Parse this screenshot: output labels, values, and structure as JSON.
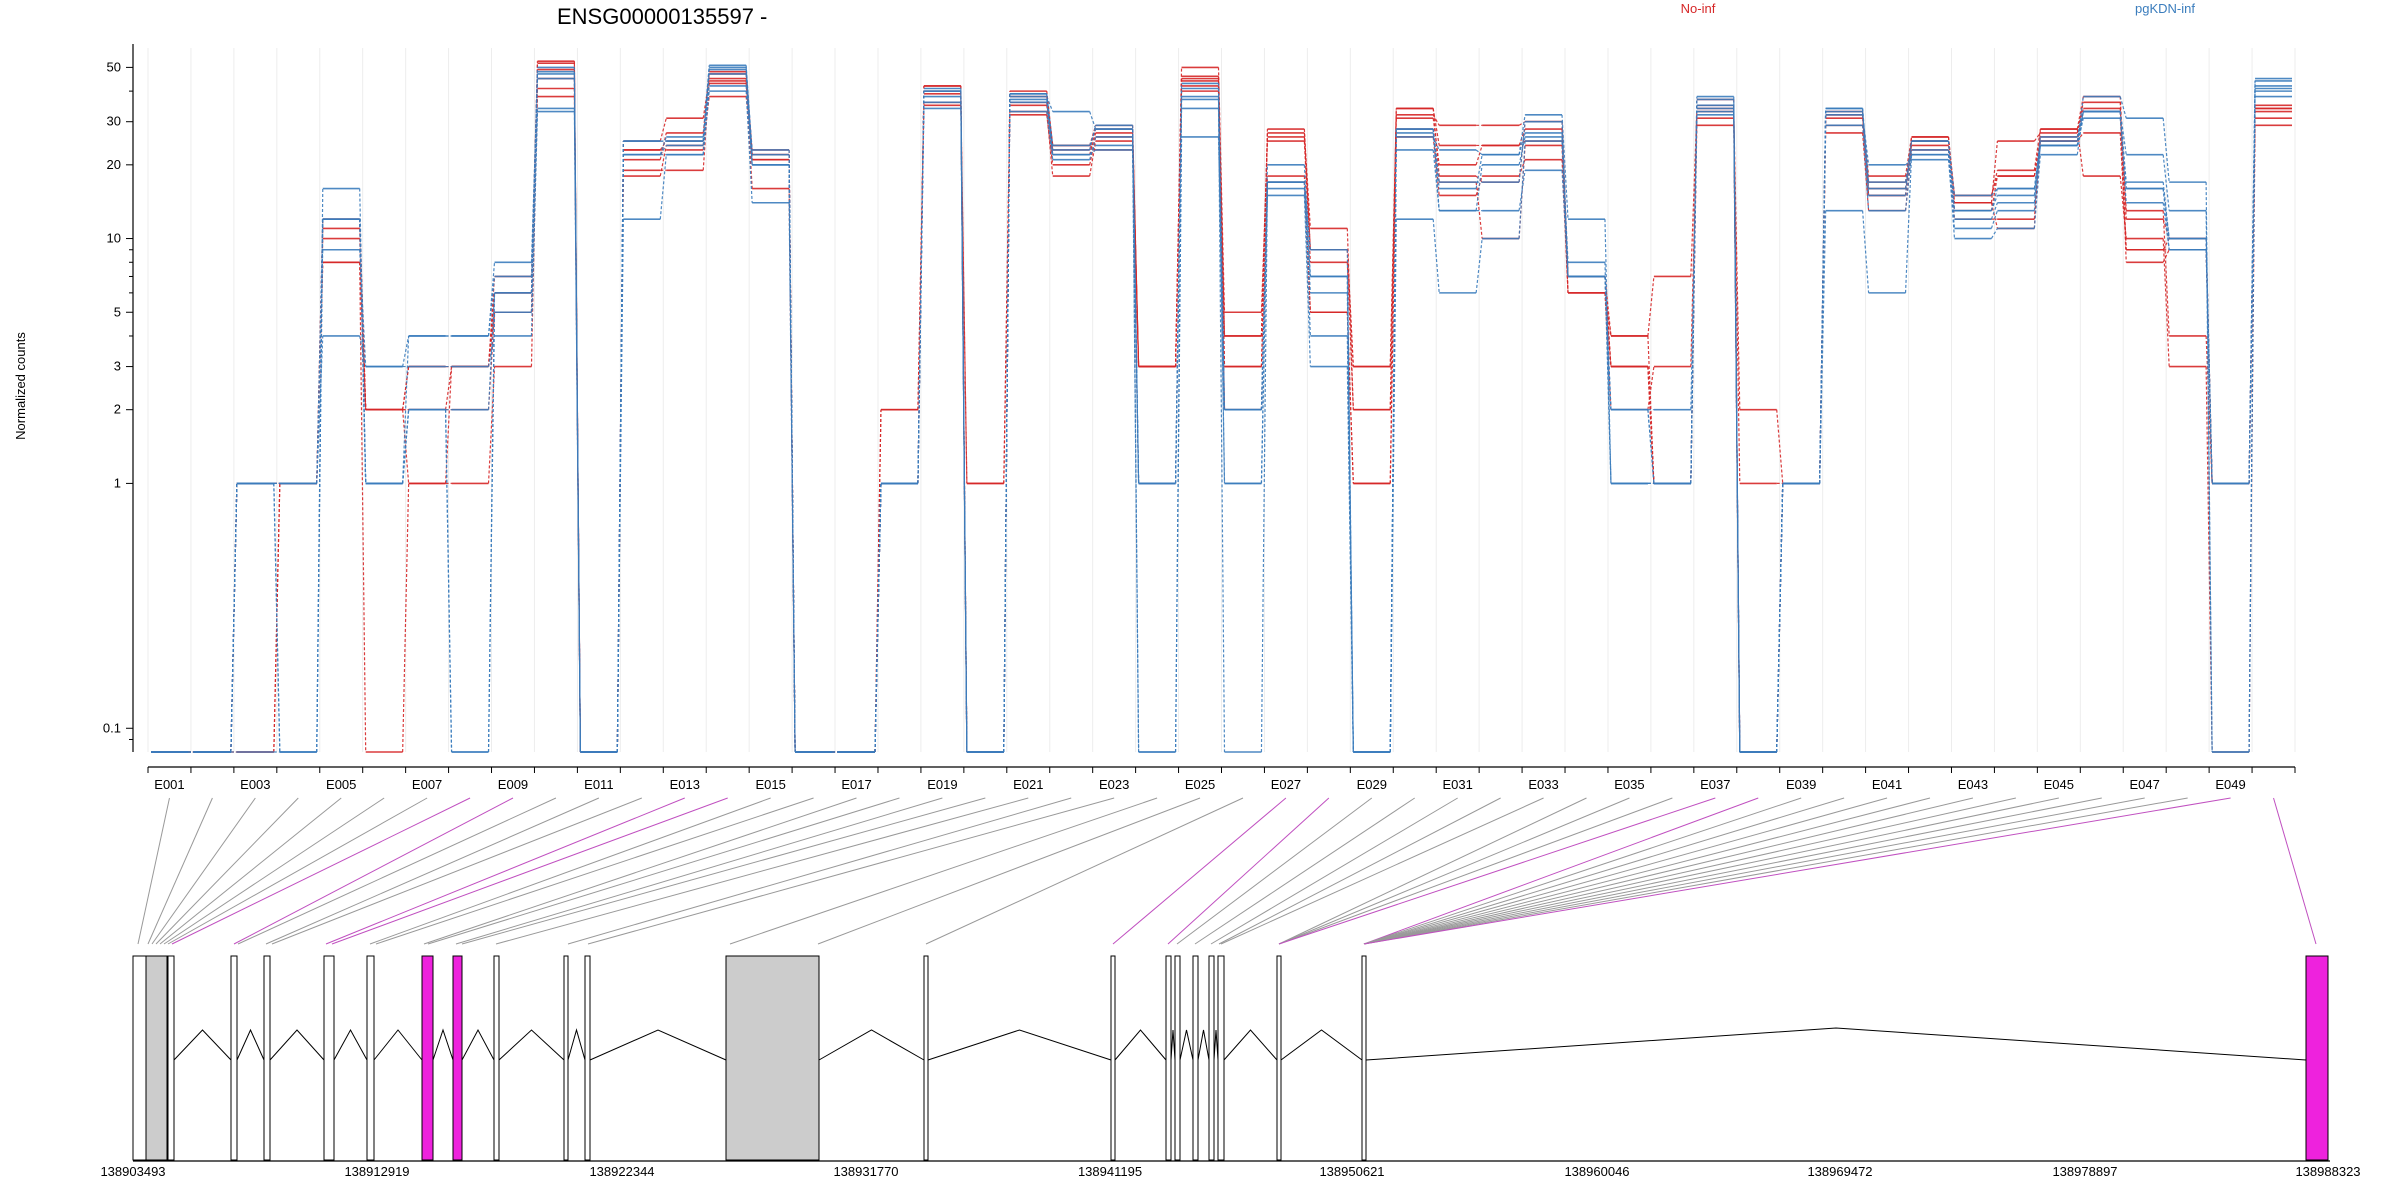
{
  "chart_data": {
    "type": "line",
    "title": "ENSG00000135597 -",
    "ylabel": "Normalized counts",
    "y_scale": "log",
    "ylim": [
      0.08,
      60
    ],
    "y_ticks": [
      0.1,
      1,
      2,
      3,
      5,
      10,
      20,
      30,
      50
    ],
    "y_tick_labels": [
      "0.1",
      "1",
      "2",
      "3",
      "5",
      "10",
      "20",
      "30",
      "50"
    ],
    "x_tick_labels": [
      "E001",
      "E003",
      "E005",
      "E007",
      "E009",
      "E011",
      "E013",
      "E015",
      "E017",
      "E019",
      "E021",
      "E023",
      "E025",
      "E027",
      "E029",
      "E031",
      "E033",
      "E035",
      "E037",
      "E039",
      "E041",
      "E043",
      "E045",
      "E047",
      "E049"
    ],
    "legend": [
      {
        "name": "No-inf",
        "color": "#d62728",
        "position": "top-center"
      },
      {
        "name": "pgKDN-inf",
        "color": "#3b7dbd",
        "position": "top-right"
      }
    ],
    "exons": [
      "E001",
      "E002",
      "E003",
      "E004",
      "E005",
      "E006",
      "E007",
      "E008",
      "E009",
      "E010",
      "E011",
      "E012",
      "E013",
      "E014",
      "E015",
      "E016",
      "E017",
      "E018",
      "E019",
      "E020",
      "E021",
      "E022",
      "E023",
      "E024",
      "E025",
      "E026",
      "E027",
      "E028",
      "E029",
      "E030",
      "E031",
      "E032",
      "E033",
      "E034",
      "E035",
      "E036",
      "E037",
      "E038",
      "E039",
      "E040",
      "E041",
      "E042",
      "E043",
      "E044",
      "E045",
      "E046",
      "E047",
      "E048",
      "E049",
      "E050"
    ],
    "series": [
      {
        "group": "No-inf",
        "color": "#d62728",
        "values": [
          0.08,
          0.08,
          1,
          1,
          12,
          2,
          3,
          3,
          6,
          53,
          0.08,
          23,
          25,
          48,
          22,
          0.08,
          0.08,
          1,
          42,
          0.08,
          40,
          24,
          29,
          3,
          45,
          4,
          26,
          9,
          3,
          32,
          29,
          29,
          30,
          7,
          4,
          1,
          37,
          0.08,
          1,
          32,
          18,
          26,
          14,
          25,
          27,
          36,
          9,
          9,
          1,
          34
        ]
      },
      {
        "group": "No-inf",
        "color": "#d62728",
        "values": [
          0.08,
          0.08,
          1,
          1,
          10,
          2,
          2,
          3,
          5,
          52,
          0.08,
          21,
          27,
          47,
          21,
          0.08,
          0.08,
          1,
          40,
          0.08,
          38,
          23,
          28,
          3,
          44,
          4,
          27,
          11,
          2,
          34,
          24,
          24,
          28,
          7,
          3,
          1,
          35,
          0.08,
          1,
          33,
          15,
          25,
          13,
          18,
          26,
          34,
          13,
          4,
          1,
          35
        ]
      },
      {
        "group": "No-inf",
        "color": "#d62728",
        "values": [
          0.08,
          0.08,
          0.08,
          1,
          8,
          2,
          1,
          3,
          7,
          49,
          0.08,
          25,
          31,
          45,
          23,
          0.08,
          0.08,
          1,
          39,
          0.08,
          35,
          22,
          27,
          3,
          42,
          3,
          28,
          9,
          3,
          31,
          20,
          24,
          25,
          6,
          3,
          1,
          34,
          0.08,
          1,
          31,
          16,
          24,
          15,
          18,
          25,
          33,
          8,
          9,
          1,
          33
        ]
      },
      {
        "group": "No-inf",
        "color": "#d62728",
        "values": [
          0.08,
          0.08,
          0.08,
          1,
          8,
          0.08,
          1,
          1,
          3,
          45,
          0.08,
          19,
          19,
          44,
          16,
          0.08,
          0.08,
          2,
          35,
          1,
          33,
          18,
          25,
          3,
          50,
          5,
          25,
          8,
          2,
          28,
          17,
          10,
          24,
          6,
          4,
          7,
          33,
          2,
          1,
          29,
          17,
          25,
          14,
          11,
          28,
          18,
          10,
          3,
          0.08,
          29
        ]
      },
      {
        "group": "No-inf",
        "color": "#d62728",
        "values": [
          0.08,
          0.08,
          1,
          1,
          12,
          2,
          3,
          3,
          6,
          41,
          0.08,
          18,
          24,
          38,
          22,
          0.08,
          0.08,
          2,
          36,
          1,
          32,
          20,
          26,
          3,
          46,
          2,
          17,
          5,
          1,
          26,
          15,
          18,
          21,
          6,
          2,
          3,
          31,
          1,
          1,
          27,
          13,
          23,
          12,
          12,
          25,
          27,
          9,
          10,
          1,
          31
        ]
      },
      {
        "group": "No-inf",
        "color": "#d62728",
        "values": [
          0.08,
          0.08,
          1,
          1,
          11,
          2,
          2,
          2,
          5,
          38,
          0.08,
          23,
          23,
          43,
          21,
          0.08,
          0.08,
          1,
          42,
          0.08,
          36,
          24,
          23,
          1,
          40,
          3,
          18,
          5,
          1,
          34,
          18,
          17,
          30,
          7,
          3,
          1,
          29,
          0.08,
          1,
          32,
          15,
          26,
          15,
          19,
          28,
          38,
          12,
          10,
          1,
          34
        ]
      },
      {
        "group": "pgKDN-inf",
        "color": "#3b7dbd",
        "values": [
          0.08,
          0.08,
          1,
          0.08,
          16,
          1,
          4,
          4,
          8,
          45,
          0.08,
          25,
          25,
          50,
          20,
          0.08,
          0.08,
          1,
          38,
          0.08,
          38,
          33,
          28,
          0.08,
          37,
          0.08,
          17,
          6,
          0.08,
          26,
          23,
          22,
          32,
          12,
          1,
          1,
          34,
          0.08,
          1,
          32,
          20,
          21,
          11,
          13,
          24,
          38,
          31,
          17,
          0.08,
          44
        ]
      },
      {
        "group": "pgKDN-inf",
        "color": "#3b7dbd",
        "values": [
          0.08,
          0.08,
          0.08,
          0.08,
          12,
          1,
          2,
          0.08,
          5,
          34,
          0.08,
          12,
          22,
          40,
          14,
          0.08,
          0.08,
          1,
          36,
          0.08,
          37,
          22,
          24,
          0.08,
          26,
          2,
          15,
          3,
          0.08,
          12,
          6,
          10,
          25,
          8,
          1,
          1,
          33,
          0.08,
          1,
          13,
          6,
          22,
          10,
          11,
          22,
          33,
          22,
          13,
          0.08,
          42
        ]
      },
      {
        "group": "pgKDN-inf",
        "color": "#3b7dbd",
        "values": [
          0.08,
          0.08,
          1,
          1,
          9,
          3,
          4,
          4,
          7,
          48,
          0.08,
          22,
          26,
          51,
          22,
          0.08,
          0.08,
          1,
          40,
          0.08,
          39,
          23,
          29,
          1,
          41,
          2,
          20,
          7,
          0.08,
          28,
          17,
          17,
          30,
          7,
          2,
          1,
          35,
          0.08,
          1,
          33,
          16,
          23,
          13,
          16,
          25,
          33,
          17,
          10,
          1,
          40
        ]
      },
      {
        "group": "pgKDN-inf",
        "color": "#3b7dbd",
        "values": [
          0.08,
          0.08,
          1,
          1,
          4,
          3,
          3,
          3,
          4,
          33,
          0.08,
          22,
          24,
          42,
          20,
          0.08,
          0.08,
          1,
          34,
          0.08,
          33,
          21,
          26,
          1,
          34,
          1,
          17,
          4,
          0.08,
          23,
          13,
          13,
          19,
          7,
          2,
          2,
          32,
          0.08,
          1,
          29,
          13,
          22,
          12,
          14,
          24,
          31,
          14,
          9,
          1,
          38
        ]
      },
      {
        "group": "pgKDN-inf",
        "color": "#3b7dbd",
        "values": [
          0.08,
          0.08,
          1,
          1,
          12,
          1,
          2,
          2,
          6,
          50,
          0.08,
          25,
          25,
          49,
          23,
          0.08,
          0.08,
          1,
          41,
          0.08,
          39,
          24,
          28,
          1,
          43,
          2,
          17,
          9,
          0.08,
          28,
          13,
          20,
          26,
          7,
          2,
          1,
          37,
          0.08,
          1,
          34,
          17,
          25,
          15,
          16,
          24,
          33,
          16,
          9,
          1,
          41
        ]
      },
      {
        "group": "pgKDN-inf",
        "color": "#3b7dbd",
        "values": [
          0.08,
          0.08,
          1,
          0.08,
          12,
          1,
          2,
          0.08,
          6,
          47,
          0.08,
          22,
          22,
          47,
          20,
          0.08,
          0.08,
          1,
          40,
          0.08,
          36,
          22,
          23,
          1,
          38,
          1,
          16,
          7,
          0.08,
          27,
          16,
          22,
          27,
          7,
          1,
          1,
          38,
          0.08,
          1,
          34,
          15,
          25,
          13,
          15,
          26,
          33,
          16,
          10,
          1,
          45
        ]
      }
    ],
    "gene_coordinates": [
      "138903493",
      "138912919",
      "138922344",
      "138931770",
      "138941195",
      "138950621",
      "138960046",
      "138969472",
      "138978897",
      "138988323"
    ]
  }
}
